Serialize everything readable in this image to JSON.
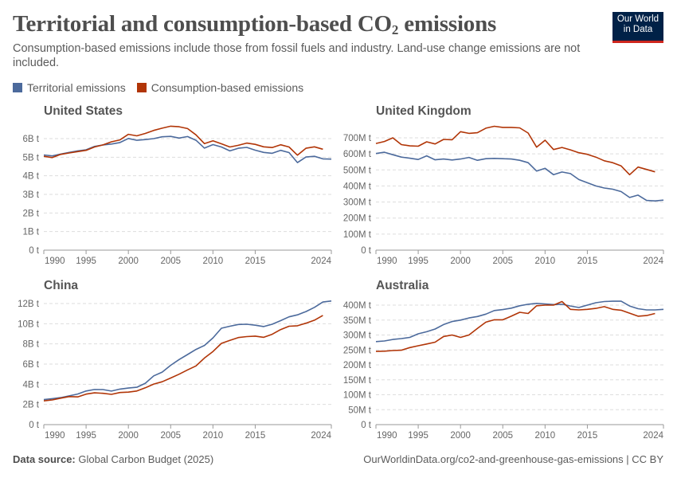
{
  "header": {
    "title_main": "Territorial and consumption-based CO",
    "title_sub": "2",
    "title_end": " emissions",
    "subtitle": "Consumption-based emissions include those from fossil fuels and industry. Land-use change emissions are not included.",
    "logo_line1": "Our World",
    "logo_line2": "in Data"
  },
  "legend": [
    {
      "label": "Territorial emissions",
      "color": "#4c6a9c"
    },
    {
      "label": "Consumption-based emissions",
      "color": "#b13507"
    }
  ],
  "footer": {
    "source_label": "Data source:",
    "source_value": " Global Carbon Budget (2025)",
    "url": "OurWorldinData.org/co2-and-greenhouse-gas-emissions | CC BY"
  },
  "chart_data": [
    {
      "type": "line",
      "title": "United States",
      "x_start": 1990,
      "x_end": 2024,
      "x_ticks": [
        "1990",
        "1995",
        "2000",
        "2005",
        "2010",
        "2015",
        "2024"
      ],
      "y_ticks": [
        "0 t",
        "1B t",
        "2B t",
        "3B t",
        "4B t",
        "5B t",
        "6B t"
      ],
      "y_tick_values": [
        0,
        1,
        2,
        3,
        4,
        5,
        6
      ],
      "ylim": [
        0,
        6.7
      ],
      "unit": "billion tonnes",
      "grid": true,
      "series": [
        {
          "name": "Territorial emissions",
          "color": "#4c6a9c",
          "values": [
            5.12,
            5.07,
            5.17,
            5.26,
            5.34,
            5.4,
            5.58,
            5.66,
            5.71,
            5.79,
            6.01,
            5.91,
            5.95,
            6.0,
            6.1,
            6.12,
            6.03,
            6.11,
            5.91,
            5.49,
            5.68,
            5.55,
            5.34,
            5.48,
            5.53,
            5.38,
            5.26,
            5.21,
            5.37,
            5.25,
            4.71,
            5.01,
            5.05,
            4.91,
            4.9
          ]
        },
        {
          "name": "Consumption-based emissions",
          "color": "#b13507",
          "values": [
            5.05,
            4.98,
            5.15,
            5.23,
            5.3,
            5.37,
            5.55,
            5.66,
            5.83,
            5.93,
            6.23,
            6.15,
            6.28,
            6.44,
            6.56,
            6.67,
            6.64,
            6.54,
            6.2,
            5.73,
            5.88,
            5.72,
            5.55,
            5.64,
            5.76,
            5.69,
            5.56,
            5.52,
            5.67,
            5.55,
            5.11,
            5.48,
            5.56,
            5.43
          ]
        }
      ]
    },
    {
      "type": "line",
      "title": "United Kingdom",
      "x_start": 1990,
      "x_end": 2024,
      "x_ticks": [
        "1990",
        "1995",
        "2000",
        "2005",
        "2010",
        "2015",
        "2024"
      ],
      "y_ticks": [
        "0 t",
        "100M t",
        "200M t",
        "300M t",
        "400M t",
        "500M t",
        "600M t",
        "700M t"
      ],
      "y_tick_values": [
        0,
        100,
        200,
        300,
        400,
        500,
        600,
        700
      ],
      "ylim": [
        0,
        780
      ],
      "unit": "million tonnes",
      "grid": true,
      "series": [
        {
          "name": "Territorial emissions",
          "color": "#4c6a9c",
          "values": [
            602,
            610,
            595,
            580,
            573,
            565,
            588,
            563,
            568,
            562,
            568,
            578,
            560,
            570,
            572,
            570,
            568,
            560,
            545,
            493,
            510,
            470,
            487,
            477,
            440,
            420,
            400,
            387,
            380,
            365,
            328,
            343,
            310,
            307,
            312
          ]
        },
        {
          "name": "Consumption-based emissions",
          "color": "#b13507",
          "values": [
            665,
            677,
            700,
            658,
            650,
            648,
            675,
            662,
            690,
            688,
            738,
            728,
            732,
            760,
            772,
            765,
            765,
            762,
            730,
            642,
            685,
            627,
            640,
            625,
            607,
            597,
            580,
            557,
            545,
            525,
            470,
            518,
            503,
            488
          ]
        }
      ]
    },
    {
      "type": "line",
      "title": "China",
      "x_start": 1990,
      "x_end": 2024,
      "x_ticks": [
        "1990",
        "1995",
        "2000",
        "2005",
        "2010",
        "2015",
        "2024"
      ],
      "y_ticks": [
        "0 t",
        "2B t",
        "4B t",
        "6B t",
        "8B t",
        "10B t",
        "12B t"
      ],
      "y_tick_values": [
        0,
        2,
        4,
        6,
        8,
        10,
        12
      ],
      "ylim": [
        0,
        12.3
      ],
      "unit": "billion tonnes",
      "grid": true,
      "series": [
        {
          "name": "Territorial emissions",
          "color": "#4c6a9c",
          "values": [
            2.48,
            2.57,
            2.68,
            2.85,
            3.03,
            3.33,
            3.48,
            3.47,
            3.32,
            3.52,
            3.62,
            3.7,
            4.1,
            4.83,
            5.2,
            5.88,
            6.45,
            6.95,
            7.45,
            7.85,
            8.6,
            9.55,
            9.75,
            9.92,
            9.95,
            9.85,
            9.72,
            9.95,
            10.3,
            10.68,
            10.88,
            11.2,
            11.62,
            12.15,
            12.25
          ]
        },
        {
          "name": "Consumption-based emissions",
          "color": "#b13507",
          "values": [
            2.35,
            2.45,
            2.62,
            2.78,
            2.75,
            3.02,
            3.15,
            3.1,
            3.0,
            3.18,
            3.22,
            3.33,
            3.65,
            4.02,
            4.25,
            4.62,
            5.0,
            5.42,
            5.82,
            6.6,
            7.25,
            8.05,
            8.35,
            8.63,
            8.72,
            8.77,
            8.65,
            8.95,
            9.42,
            9.75,
            9.8,
            10.05,
            10.35,
            10.82
          ]
        }
      ]
    },
    {
      "type": "line",
      "title": "Australia",
      "x_start": 1990,
      "x_end": 2024,
      "x_ticks": [
        "1990",
        "1995",
        "2000",
        "2005",
        "2010",
        "2015",
        "2024"
      ],
      "y_ticks": [
        "0 t",
        "50M t",
        "100M t",
        "150M t",
        "200M t",
        "250M t",
        "300M t",
        "350M t",
        "400M t"
      ],
      "y_tick_values": [
        0,
        50,
        100,
        150,
        200,
        250,
        300,
        350,
        400
      ],
      "ylim": [
        0,
        415
      ],
      "unit": "million tonnes",
      "grid": true,
      "series": [
        {
          "name": "Territorial emissions",
          "color": "#4c6a9c",
          "values": [
            278,
            280,
            285,
            288,
            292,
            304,
            311,
            320,
            335,
            345,
            350,
            357,
            362,
            370,
            382,
            385,
            390,
            398,
            403,
            406,
            404,
            402,
            403,
            397,
            392,
            400,
            408,
            412,
            413,
            413,
            397,
            388,
            384,
            384,
            386
          ]
        },
        {
          "name": "Consumption-based emissions",
          "color": "#b13507",
          "values": [
            245,
            246,
            248,
            249,
            258,
            264,
            270,
            276,
            295,
            300,
            292,
            300,
            322,
            343,
            351,
            351,
            363,
            376,
            372,
            398,
            400,
            400,
            412,
            386,
            384,
            386,
            389,
            395,
            386,
            383,
            373,
            363,
            365,
            372
          ]
        }
      ]
    }
  ]
}
